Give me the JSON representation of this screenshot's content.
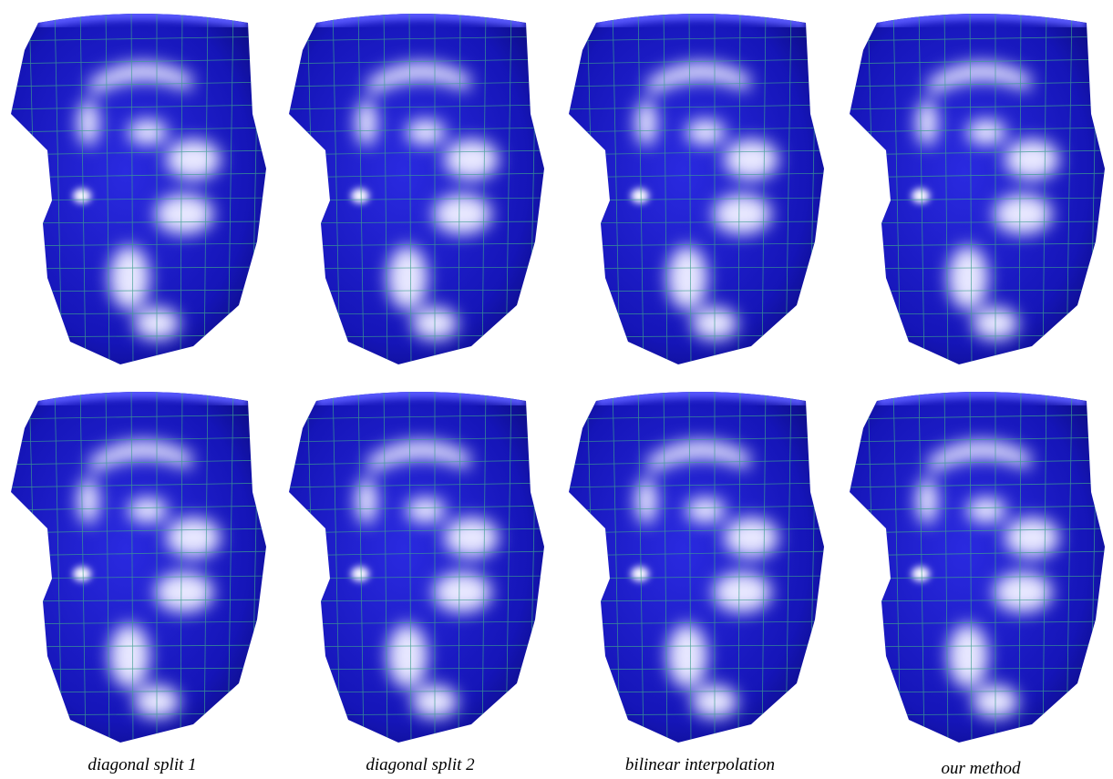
{
  "figure": {
    "captions": [
      "diagonal split 1",
      "diagonal split 2",
      "bilinear interpolation",
      "our method"
    ]
  }
}
